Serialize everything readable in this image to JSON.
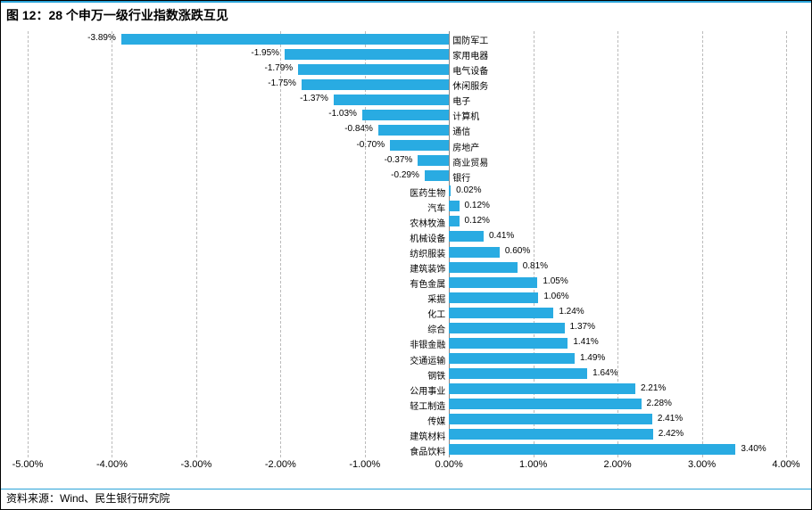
{
  "title": "图 12：28 个申万一级行业指数涨跌互见",
  "source": "资料来源：Wind、民生银行研究院",
  "chart": {
    "type": "bar-horizontal",
    "xmin": -5.0,
    "xmax": 4.0,
    "xtick_step": 1.0,
    "xtick_format_suffix": "%",
    "bar_color": "#29abe2",
    "grid_color": "#bbbbbb",
    "zero_line_color": "#888888",
    "background_color": "#ffffff",
    "label_fontsize": 10,
    "tick_fontsize": 11,
    "categories": [
      "国防军工",
      "家用电器",
      "电气设备",
      "休闲服务",
      "电子",
      "计算机",
      "通信",
      "房地产",
      "商业贸易",
      "银行",
      "医药生物",
      "汽车",
      "农林牧渔",
      "机械设备",
      "纺织服装",
      "建筑装饰",
      "有色金属",
      "采掘",
      "化工",
      "综合",
      "非银金融",
      "交通运输",
      "钢铁",
      "公用事业",
      "轻工制造",
      "传媒",
      "建筑材料",
      "食品饮料"
    ],
    "values": [
      -3.89,
      -1.95,
      -1.79,
      -1.75,
      -1.37,
      -1.03,
      -0.84,
      -0.7,
      -0.37,
      -0.29,
      0.02,
      0.12,
      0.12,
      0.41,
      0.6,
      0.81,
      1.05,
      1.06,
      1.24,
      1.37,
      1.41,
      1.49,
      1.64,
      2.21,
      2.28,
      2.41,
      2.42,
      3.4
    ],
    "xticks": [
      "-5.00%",
      "-4.00%",
      "-3.00%",
      "-2.00%",
      "-1.00%",
      "0.00%",
      "1.00%",
      "2.00%",
      "3.00%",
      "4.00%"
    ]
  }
}
